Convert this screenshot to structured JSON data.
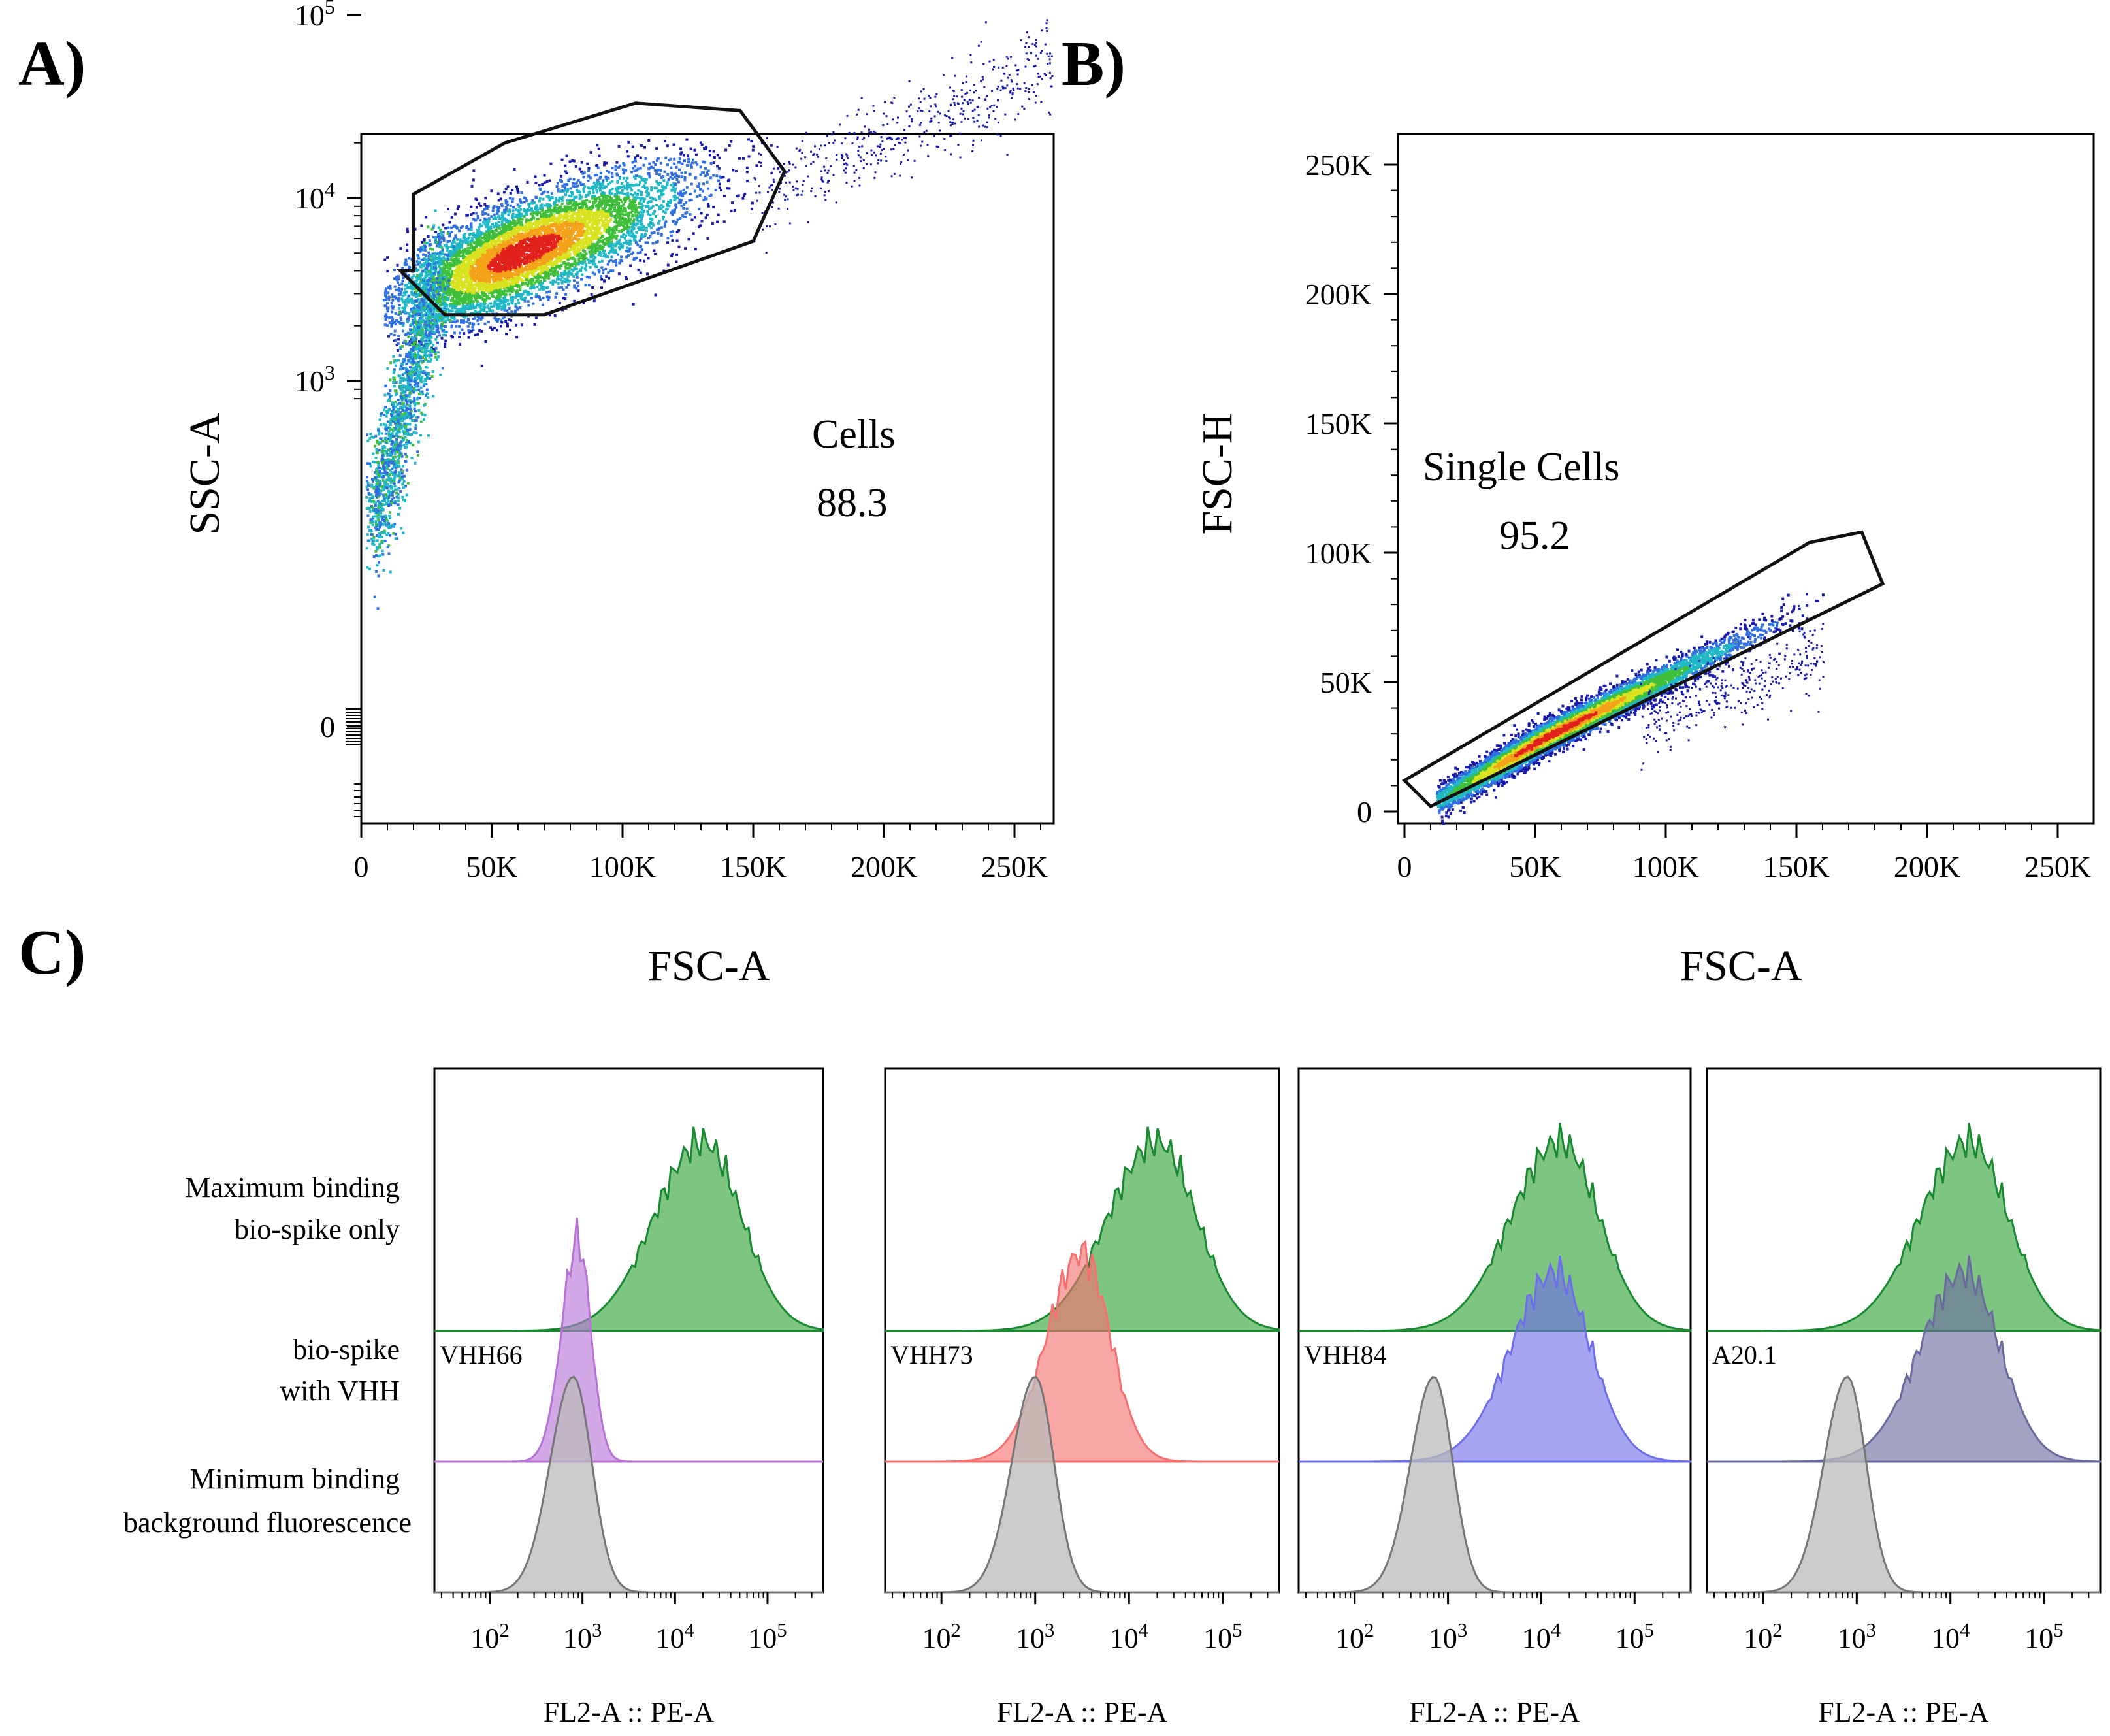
{
  "panels": {
    "a": {
      "letter": "A)"
    },
    "b": {
      "letter": "B)"
    },
    "c": {
      "letter": "C)"
    }
  },
  "chart_data": [
    {
      "id": "A",
      "type": "scatter",
      "xlabel": "FSC-A",
      "ylabel": "SSC-A",
      "x_ticks": [
        "0",
        "50K",
        "100K",
        "150K",
        "200K",
        "250K"
      ],
      "y_ticks": [
        "0",
        "10^3",
        "10^4",
        "10^5"
      ],
      "gate": {
        "name": "Cells",
        "value": "88.3",
        "polygon": [
          [
            20000,
            4000
          ],
          [
            20000,
            10500
          ],
          [
            55000,
            20000
          ],
          [
            105000,
            33000
          ],
          [
            145000,
            30000
          ],
          [
            162000,
            14000
          ],
          [
            150000,
            5800
          ],
          [
            70000,
            2300
          ],
          [
            32000,
            2300
          ],
          [
            15000,
            4000
          ]
        ]
      },
      "density_center": [
        60000,
        5000
      ]
    },
    {
      "id": "B",
      "type": "scatter",
      "xlabel": "FSC-A",
      "ylabel": "FSC-H",
      "x_ticks": [
        "0",
        "50K",
        "100K",
        "150K",
        "200K",
        "250K"
      ],
      "y_ticks": [
        "0",
        "50K",
        "100K",
        "150K",
        "200K",
        "250K"
      ],
      "gate": {
        "name": "Single Cells",
        "value": "95.2",
        "polygon": [
          [
            0,
            12000
          ],
          [
            10000,
            2000
          ],
          [
            183000,
            88000
          ],
          [
            175000,
            108000
          ],
          [
            155000,
            104000
          ]
        ]
      },
      "density_center": [
        55000,
        30000
      ]
    },
    {
      "id": "C",
      "type": "histogram",
      "xlabel": "FL2-A :: PE-A",
      "x_ticks": [
        "10^2",
        "10^3",
        "10^4",
        "10^5"
      ],
      "row_labels": [
        [
          "Maximum binding",
          "bio-spike only"
        ],
        [
          "bio-spike",
          "with VHH"
        ],
        [
          "Minimum binding",
          "background fluorescence"
        ]
      ],
      "series": [
        {
          "sample": "VHH66",
          "max_peak_log": 4.3,
          "vhh_peak_log": 2.95,
          "vhh_color": "#b774d6",
          "bg_peak_log": 2.9
        },
        {
          "sample": "VHH73",
          "max_peak_log": 4.3,
          "vhh_peak_log": 3.5,
          "vhh_color": "#f57070",
          "bg_peak_log": 3.0
        },
        {
          "sample": "VHH84",
          "max_peak_log": 4.2,
          "vhh_peak_log": 4.15,
          "vhh_color": "#6e6ee8",
          "bg_peak_log": 2.85
        },
        {
          "sample": "A20.1",
          "max_peak_log": 4.2,
          "vhh_peak_log": 4.15,
          "vhh_color": "#6a6a9e",
          "bg_peak_log": 2.9
        }
      ],
      "colors": {
        "max": "#4caf50",
        "max_line": "#1a8a32",
        "background": "#bbbbbb",
        "background_line": "#777777"
      }
    }
  ]
}
